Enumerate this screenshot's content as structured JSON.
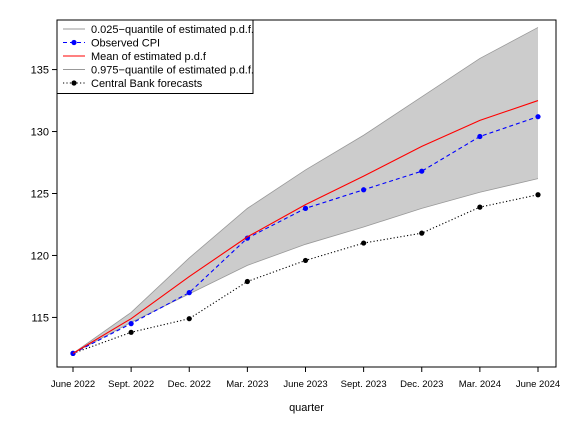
{
  "chart_data": {
    "type": "line",
    "title": "",
    "xlabel": "quarter",
    "ylabel": "",
    "ylim": [
      111,
      139
    ],
    "yticks": [
      115,
      120,
      125,
      130,
      135
    ],
    "categories": [
      "June 2022",
      "Sept. 2022",
      "Dec. 2022",
      "Mar. 2023",
      "June 2023",
      "Sept. 2023",
      "Dec. 2023",
      "Mar. 2024",
      "June 2024"
    ],
    "legend_position": "top-left",
    "band": {
      "lower_name": "0.025−quantile of estimated p.d.f.",
      "upper_name": "0.975−quantile of estimated p.d.f.",
      "lower": [
        112.1,
        114.6,
        116.9,
        119.2,
        120.9,
        122.3,
        123.8,
        125.1,
        126.2
      ],
      "upper": [
        112.1,
        115.4,
        119.8,
        123.8,
        126.9,
        129.7,
        132.8,
        135.9,
        138.4
      ],
      "fill_color": "#cccccc",
      "line_color": "#999999"
    },
    "series": [
      {
        "name": "Observed CPI",
        "values": [
          112.1,
          114.5,
          117.0,
          121.4,
          123.8,
          125.3,
          126.8,
          129.6,
          131.2
        ],
        "color": "#0000ff",
        "style": "dashed",
        "marker": "dot"
      },
      {
        "name": "Mean of estimated p.d.f",
        "values": [
          112.1,
          114.9,
          118.3,
          121.5,
          124.1,
          126.4,
          128.8,
          130.9,
          132.5
        ],
        "color": "#ff0000",
        "style": "solid",
        "marker": "none"
      },
      {
        "name": "Central Bank forecasts",
        "values": [
          112.1,
          113.8,
          114.9,
          117.9,
          119.6,
          121.0,
          121.8,
          123.9,
          124.9
        ],
        "color": "#000000",
        "style": "dotted",
        "marker": "dot"
      }
    ],
    "legend": [
      {
        "label": "0.025−quantile of estimated p.d.f.",
        "color": "#999999",
        "style": "solid",
        "marker": "none"
      },
      {
        "label": "Observed CPI",
        "color": "#0000ff",
        "style": "dashed",
        "marker": "dot"
      },
      {
        "label": "Mean of estimated p.d.f",
        "color": "#ff0000",
        "style": "solid",
        "marker": "none"
      },
      {
        "label": "0.975−quantile of estimated p.d.f.",
        "color": "#999999",
        "style": "solid",
        "marker": "none"
      },
      {
        "label": "Central Bank forecasts",
        "color": "#000000",
        "style": "dotted",
        "marker": "dot"
      }
    ]
  }
}
